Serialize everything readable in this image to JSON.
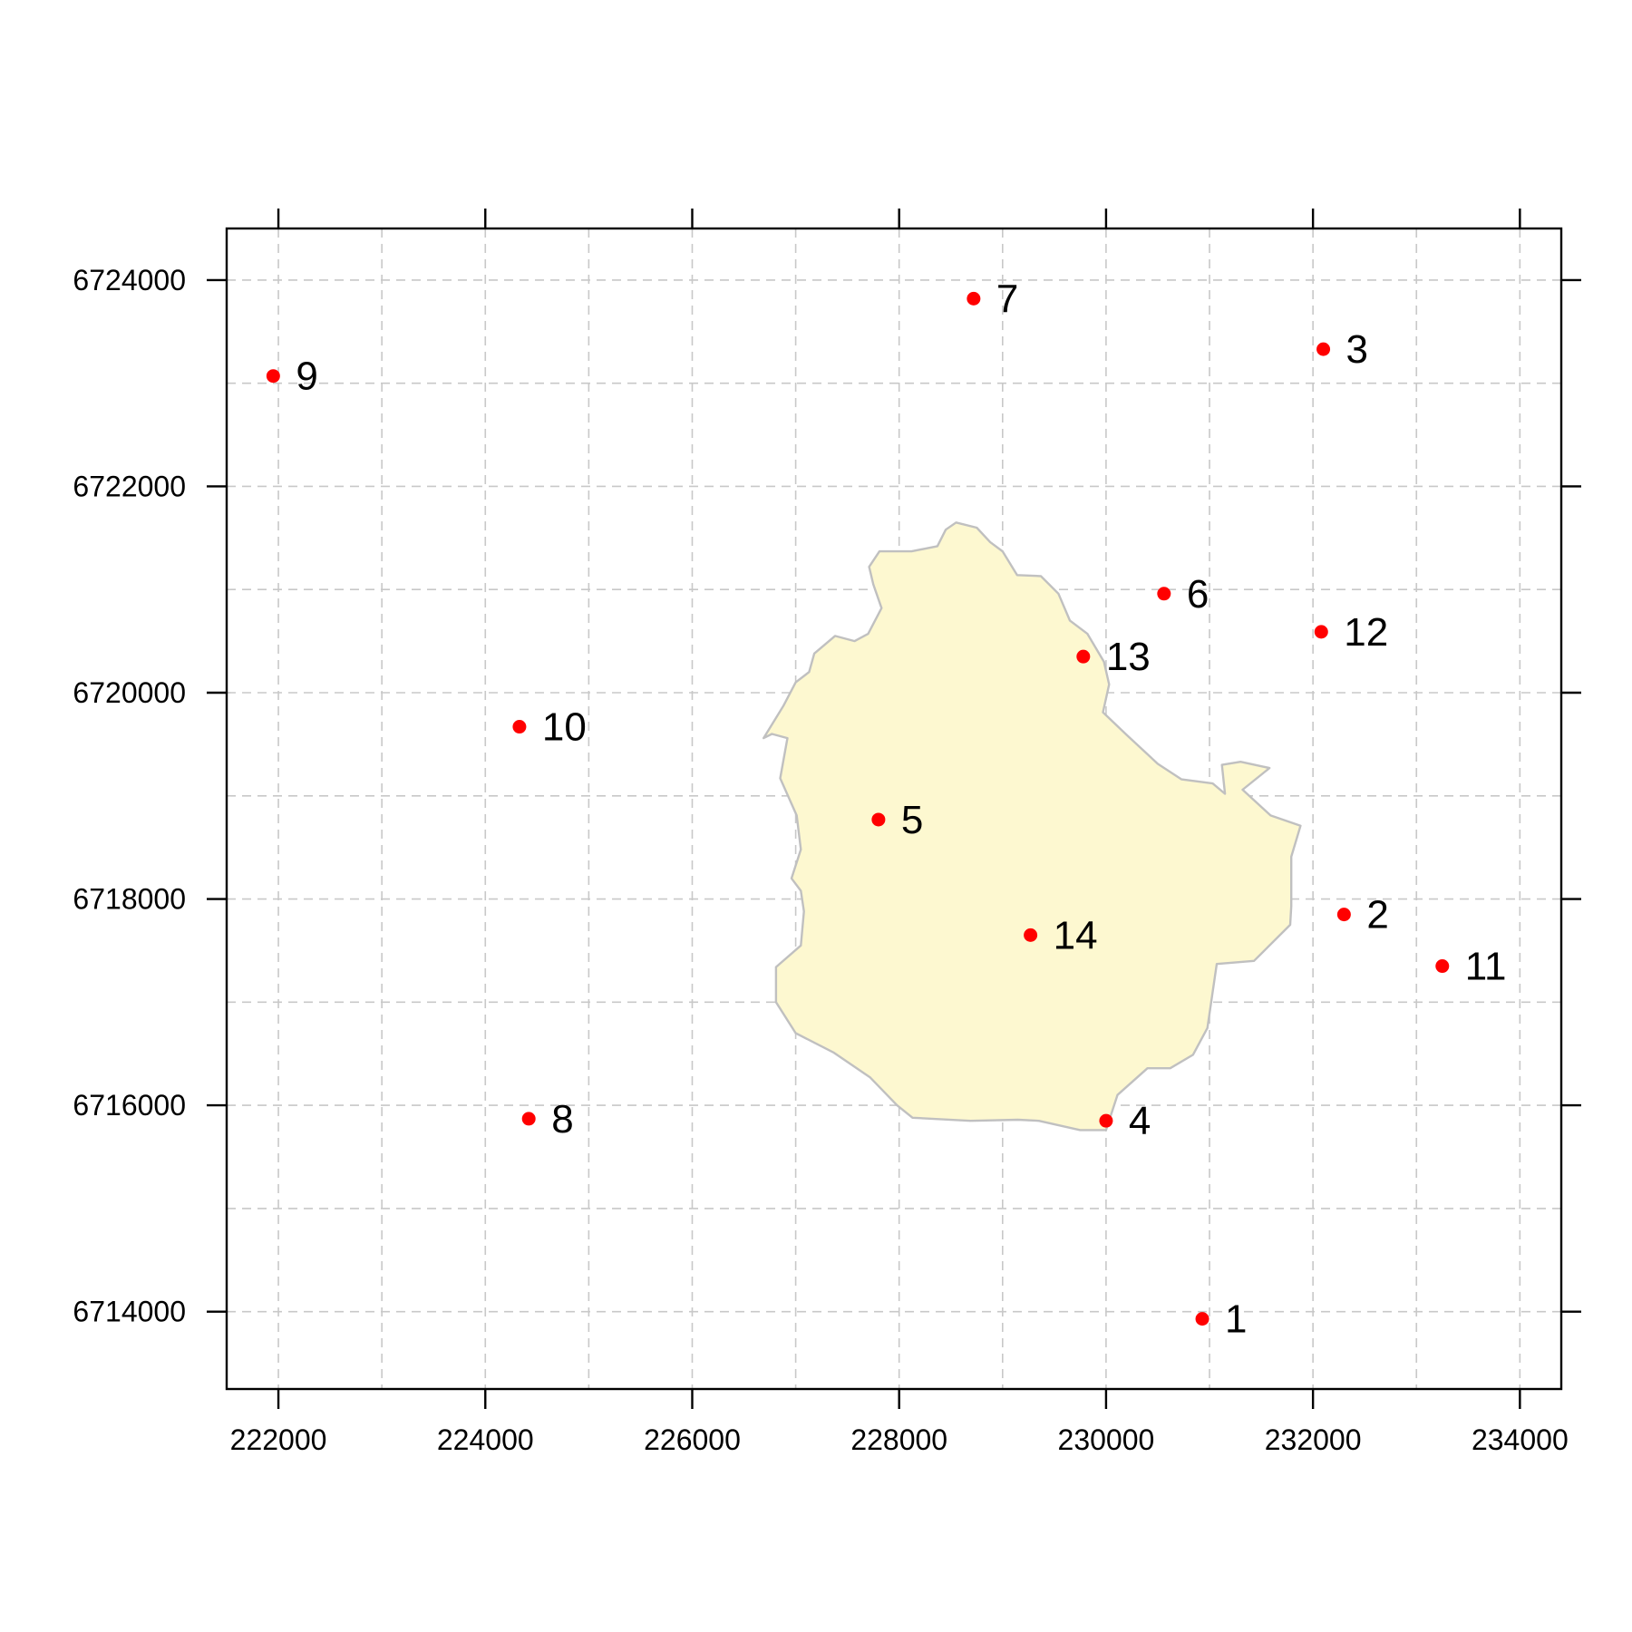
{
  "chart_data": {
    "type": "scatter",
    "x_ticks": [
      222000,
      224000,
      226000,
      228000,
      230000,
      232000,
      234000
    ],
    "x_tick_labels": [
      "222000",
      "224000",
      "226000",
      "228000",
      "230000",
      "232000",
      "234000"
    ],
    "y_ticks": [
      6714000,
      6716000,
      6718000,
      6720000,
      6722000,
      6724000
    ],
    "y_tick_labels": [
      "6714000",
      "6716000",
      "6718000",
      "6720000",
      "6722000",
      "6724000"
    ],
    "xlim": [
      221500,
      234400
    ],
    "ylim": [
      6713250,
      6724500
    ],
    "grid": true,
    "grid_step": 1000,
    "point_color": "#ff0000",
    "region_fill": "#fdf8d0",
    "region_stroke": "#c0c0c0",
    "points": [
      {
        "label": "1",
        "x": 230930,
        "y": 6713930
      },
      {
        "label": "2",
        "x": 232300,
        "y": 6717850
      },
      {
        "label": "3",
        "x": 232100,
        "y": 6723330
      },
      {
        "label": "4",
        "x": 230000,
        "y": 6715850
      },
      {
        "label": "5",
        "x": 227800,
        "y": 6718770
      },
      {
        "label": "6",
        "x": 230560,
        "y": 6720960
      },
      {
        "label": "7",
        "x": 228720,
        "y": 6723820
      },
      {
        "label": "8",
        "x": 224420,
        "y": 6715870
      },
      {
        "label": "9",
        "x": 221950,
        "y": 6723070
      },
      {
        "label": "10",
        "x": 224330,
        "y": 6719670
      },
      {
        "label": "11",
        "x": 233250,
        "y": 6717350
      },
      {
        "label": "12",
        "x": 232080,
        "y": 6720590
      },
      {
        "label": "13",
        "x": 229780,
        "y": 6720350
      },
      {
        "label": "14",
        "x": 229270,
        "y": 6717650
      }
    ],
    "region_boundary": [
      [
        228550,
        6721650
      ],
      [
        228750,
        6721600
      ],
      [
        228880,
        6721460
      ],
      [
        229000,
        6721370
      ],
      [
        229140,
        6721140
      ],
      [
        229370,
        6721130
      ],
      [
        229540,
        6720960
      ],
      [
        229650,
        6720700
      ],
      [
        229820,
        6720570
      ],
      [
        229980,
        6720300
      ],
      [
        230030,
        6720080
      ],
      [
        229970,
        6719810
      ],
      [
        230200,
        6719590
      ],
      [
        230500,
        6719310
      ],
      [
        230730,
        6719160
      ],
      [
        231030,
        6719120
      ],
      [
        231150,
        6719020
      ],
      [
        231120,
        6719300
      ],
      [
        231300,
        6719330
      ],
      [
        231580,
        6719270
      ],
      [
        231320,
        6719060
      ],
      [
        231590,
        6718810
      ],
      [
        231880,
        6718710
      ],
      [
        231790,
        6718410
      ],
      [
        231790,
        6717930
      ],
      [
        231780,
        6717750
      ],
      [
        231430,
        6717400
      ],
      [
        231070,
        6717370
      ],
      [
        230980,
        6716750
      ],
      [
        230840,
        6716490
      ],
      [
        230620,
        6716360
      ],
      [
        230400,
        6716360
      ],
      [
        230110,
        6716100
      ],
      [
        230000,
        6715760
      ],
      [
        229750,
        6715760
      ],
      [
        229350,
        6715850
      ],
      [
        229150,
        6715860
      ],
      [
        228690,
        6715850
      ],
      [
        228130,
        6715880
      ],
      [
        227980,
        6716000
      ],
      [
        227720,
        6716270
      ],
      [
        227370,
        6716510
      ],
      [
        227000,
        6716700
      ],
      [
        226810,
        6717000
      ],
      [
        226810,
        6717340
      ],
      [
        227050,
        6717550
      ],
      [
        227080,
        6717880
      ],
      [
        227050,
        6718080
      ],
      [
        226960,
        6718200
      ],
      [
        227050,
        6718480
      ],
      [
        227010,
        6718810
      ],
      [
        226850,
        6719170
      ],
      [
        226920,
        6719560
      ],
      [
        226770,
        6719600
      ],
      [
        226690,
        6719560
      ],
      [
        226880,
        6719870
      ],
      [
        227000,
        6720100
      ],
      [
        227130,
        6720200
      ],
      [
        227180,
        6720380
      ],
      [
        227380,
        6720550
      ],
      [
        227570,
        6720500
      ],
      [
        227700,
        6720570
      ],
      [
        227830,
        6720820
      ],
      [
        227750,
        6721050
      ],
      [
        227710,
        6721220
      ],
      [
        227810,
        6721370
      ],
      [
        228120,
        6721370
      ],
      [
        228370,
        6721420
      ],
      [
        228450,
        6721580
      ]
    ]
  }
}
